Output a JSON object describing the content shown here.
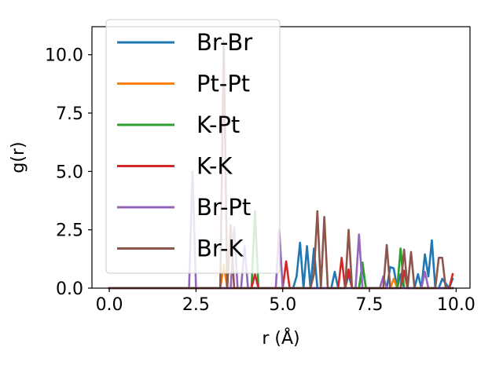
{
  "chart_data": {
    "type": "line",
    "title": "",
    "xlabel": "r (Å)",
    "ylabel": "g(r)",
    "xlim": [
      -0.5,
      10.4
    ],
    "ylim": [
      0,
      11.2
    ],
    "xticks": [
      0.0,
      2.5,
      5.0,
      7.5,
      10.0
    ],
    "xtick_labels": [
      "0.0",
      "2.5",
      "5.0",
      "7.5",
      "10.0"
    ],
    "yticks": [
      0.0,
      2.5,
      5.0,
      7.5,
      10.0
    ],
    "ytick_labels": [
      "0.0",
      "2.5",
      "5.0",
      "7.5",
      "10.0"
    ],
    "grid": false,
    "legend_position": "upper-left",
    "series": [
      {
        "name": "Br-Br",
        "color": "#1f77b4",
        "x": [
          0.0,
          5.3,
          5.4,
          5.5,
          5.6,
          5.7,
          5.8,
          5.9,
          6.0,
          6.4,
          6.5,
          6.6,
          6.8,
          6.9,
          7.0,
          7.2,
          7.3,
          7.4,
          8.0,
          8.1,
          8.2,
          8.3,
          8.4,
          8.5,
          8.6,
          8.8,
          8.9,
          9.0,
          9.1,
          9.2,
          9.3,
          9.4,
          9.5,
          9.6,
          9.8,
          9.9
        ],
        "y": [
          0.0,
          0.0,
          0.5,
          1.95,
          0.0,
          1.8,
          0.0,
          1.7,
          0.0,
          0.0,
          0.7,
          0.0,
          0.0,
          0.6,
          0.0,
          0.0,
          0.9,
          0.0,
          0.0,
          0.9,
          0.85,
          0.0,
          0.6,
          0.0,
          0.0,
          0.0,
          0.6,
          0.0,
          1.45,
          0.5,
          2.05,
          0.0,
          0.0,
          0.4,
          0.0,
          0.4
        ]
      },
      {
        "name": "Pt-Pt",
        "color": "#ff7f0e",
        "x": [
          0.0,
          3.2,
          3.3,
          3.4,
          8.1,
          8.2,
          8.3,
          9.9
        ],
        "y": [
          0.0,
          0.0,
          1.0,
          0.0,
          0.0,
          0.4,
          0.0,
          0.0
        ]
      },
      {
        "name": "K-Pt",
        "color": "#2ca02c",
        "x": [
          0.0,
          4.1,
          4.2,
          4.3,
          7.2,
          7.3,
          7.4,
          8.3,
          8.4,
          8.5,
          9.9
        ],
        "y": [
          0.0,
          0.0,
          3.3,
          0.0,
          0.0,
          1.1,
          0.0,
          0.0,
          1.7,
          0.0,
          0.0
        ]
      },
      {
        "name": "K-K",
        "color": "#d62728",
        "x": [
          0.0,
          4.1,
          4.2,
          4.3,
          5.0,
          5.1,
          5.2,
          6.6,
          6.7,
          6.8,
          6.9,
          7.0,
          8.4,
          8.5,
          8.6,
          9.8,
          9.9
        ],
        "y": [
          0.0,
          0.0,
          0.6,
          0.0,
          0.0,
          1.15,
          0.0,
          0.0,
          1.3,
          0.0,
          0.8,
          0.0,
          0.0,
          0.75,
          0.0,
          0.0,
          0.6
        ]
      },
      {
        "name": "Br-Pt",
        "color": "#9467bd",
        "x": [
          0.0,
          2.3,
          2.4,
          2.5,
          3.5,
          3.6,
          3.7,
          3.8,
          3.9,
          4.0,
          4.8,
          4.9,
          5.0,
          7.1,
          7.2,
          7.3,
          7.8,
          7.9,
          8.0,
          9.0,
          9.1,
          9.2,
          9.9
        ],
        "y": [
          0.0,
          0.0,
          5.0,
          0.0,
          0.0,
          2.6,
          0.0,
          0.0,
          1.8,
          0.0,
          0.0,
          2.5,
          0.0,
          0.0,
          2.3,
          0.0,
          0.0,
          0.5,
          0.0,
          0.0,
          0.7,
          0.0,
          0.0
        ]
      },
      {
        "name": "Br-K",
        "color": "#8c564b",
        "x": [
          0.0,
          3.2,
          3.3,
          3.4,
          3.5,
          3.6,
          5.8,
          5.9,
          6.0,
          6.1,
          6.2,
          6.3,
          6.8,
          6.9,
          7.0,
          7.9,
          8.0,
          8.1,
          8.4,
          8.5,
          8.6,
          8.7,
          8.8,
          9.4,
          9.5,
          9.6,
          9.7,
          9.9
        ],
        "y": [
          0.0,
          0.0,
          10.6,
          0.0,
          2.7,
          0.0,
          0.0,
          0.6,
          3.3,
          0.0,
          3.05,
          0.0,
          0.0,
          2.5,
          0.0,
          0.0,
          1.85,
          0.0,
          0.0,
          1.65,
          0.0,
          1.55,
          0.0,
          0.0,
          1.3,
          1.3,
          0.0,
          0.0
        ]
      }
    ]
  }
}
